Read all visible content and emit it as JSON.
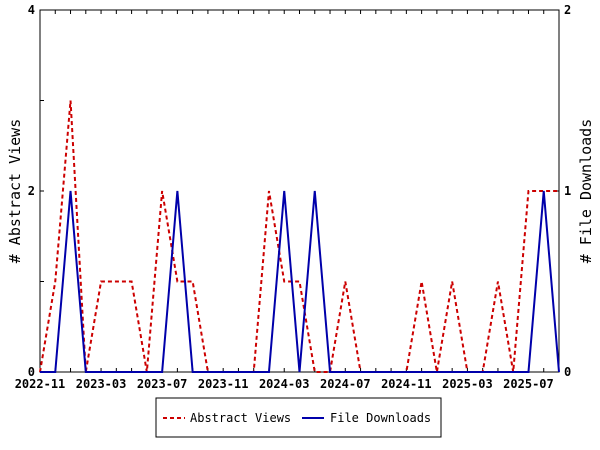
{
  "chart_data": {
    "type": "line",
    "x": [
      "2022-11",
      "2022-12",
      "2023-01",
      "2023-02",
      "2023-03",
      "2023-04",
      "2023-05",
      "2023-06",
      "2023-07",
      "2023-08",
      "2023-09",
      "2023-10",
      "2023-11",
      "2023-12",
      "2024-01",
      "2024-02",
      "2024-03",
      "2024-04",
      "2024-05",
      "2024-06",
      "2024-07",
      "2024-08",
      "2024-09",
      "2024-10",
      "2024-11",
      "2024-12",
      "2025-01",
      "2025-02",
      "2025-03",
      "2025-04",
      "2025-05",
      "2025-06",
      "2025-07",
      "2025-08",
      "2025-09"
    ],
    "xticks": [
      "2022-11",
      "2023-03",
      "2023-07",
      "2023-11",
      "2024-03",
      "2024-07",
      "2024-11",
      "2025-03",
      "2025-07"
    ],
    "series": [
      {
        "name": "Abstract Views",
        "axis": "left",
        "color": "#cc0000",
        "dash": true,
        "values": [
          0,
          1,
          3,
          0,
          1,
          1,
          1,
          0,
          2,
          1,
          1,
          0,
          0,
          0,
          0,
          2,
          1,
          1,
          0,
          0,
          1,
          0,
          0,
          0,
          0,
          1,
          0,
          1,
          0,
          0,
          1,
          0,
          2,
          2,
          2
        ]
      },
      {
        "name": "File Downloads",
        "axis": "right",
        "color": "#0000aa",
        "dash": false,
        "values": [
          0,
          0,
          1,
          0,
          0,
          0,
          0,
          0,
          0,
          1,
          0,
          0,
          0,
          0,
          0,
          0,
          1,
          0,
          1,
          0,
          0,
          0,
          0,
          0,
          0,
          0,
          0,
          0,
          0,
          0,
          0,
          0,
          0,
          1,
          0
        ]
      }
    ],
    "ylabel_left": "# Abstract Views",
    "ylabel_right": "# File Downloads",
    "ylim_left": [
      0,
      4
    ],
    "ylim_right": [
      0,
      2
    ],
    "yticks_left": [
      "0",
      "2",
      "4"
    ],
    "yticks_right": [
      "0",
      "1",
      "2"
    ],
    "legend": "bottom-center",
    "grid": false
  }
}
